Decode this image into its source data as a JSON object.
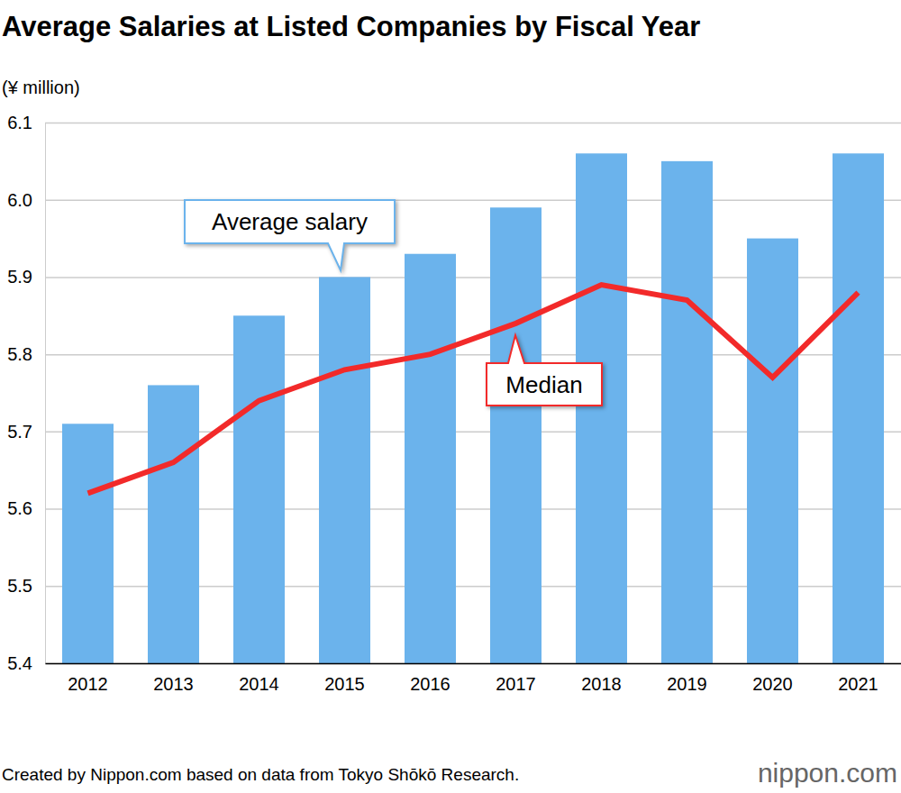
{
  "chart_data": {
    "type": "bar",
    "title": "Average Salaries at Listed Companies by Fiscal Year",
    "y_label": "(¥ million)",
    "source": "Created by Nippon.com based on data from Tokyo Shōkō Research.",
    "logo": "nippon.com",
    "categories": [
      "2012",
      "2013",
      "2014",
      "2015",
      "2016",
      "2017",
      "2018",
      "2019",
      "2020",
      "2021"
    ],
    "series": [
      {
        "name": "Average salary",
        "type": "bar",
        "color": "#6bb3ec",
        "values": [
          5.71,
          5.76,
          5.85,
          5.9,
          5.93,
          5.99,
          6.06,
          6.05,
          5.95,
          6.06
        ]
      },
      {
        "name": "Median",
        "type": "line",
        "color": "#f22a2a",
        "values": [
          5.62,
          5.66,
          5.74,
          5.78,
          5.8,
          5.84,
          5.89,
          5.87,
          5.77,
          5.88
        ]
      }
    ],
    "ylim": [
      5.4,
      6.1
    ],
    "yticks": [
      5.4,
      5.5,
      5.6,
      5.7,
      5.8,
      5.9,
      {
        "value": 6,
        "label": "6.0"
      },
      6.1
    ],
    "grid": true
  }
}
